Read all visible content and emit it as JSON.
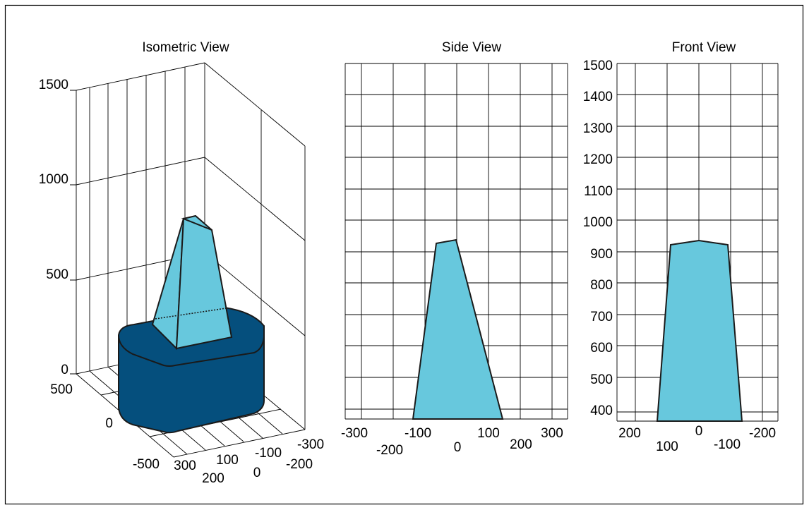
{
  "colors": {
    "light_fill": "#67c8dd",
    "dark_fill": "#054f7d",
    "outline": "#1a1a1a",
    "frame": "#000000"
  },
  "views": {
    "isometric": {
      "title": "Isometric View",
      "z_ticks": [
        "1500",
        "1000",
        "500",
        "0"
      ],
      "depth_ticks": [
        "500",
        "0",
        "-500"
      ],
      "front_ticks_left": [
        "300",
        "200"
      ],
      "front_ticks_mid": [
        "100",
        "0"
      ],
      "front_ticks_right": [
        "-100",
        "-200",
        "-300"
      ]
    },
    "side": {
      "title": "Side View",
      "x_ticks_upper": [
        "-300",
        "-100",
        "100",
        "300"
      ],
      "x_ticks_lower": [
        "-200",
        "0",
        "200"
      ]
    },
    "front": {
      "title": "Front View",
      "y_ticks": [
        "1500",
        "1400",
        "1300",
        "1200",
        "1100",
        "1000",
        "900",
        "800",
        "700",
        "600",
        "500",
        "400"
      ],
      "x_ticks_upper": [
        "200",
        "0",
        "-200"
      ],
      "x_ticks_lower": [
        "100",
        "-100"
      ]
    }
  }
}
